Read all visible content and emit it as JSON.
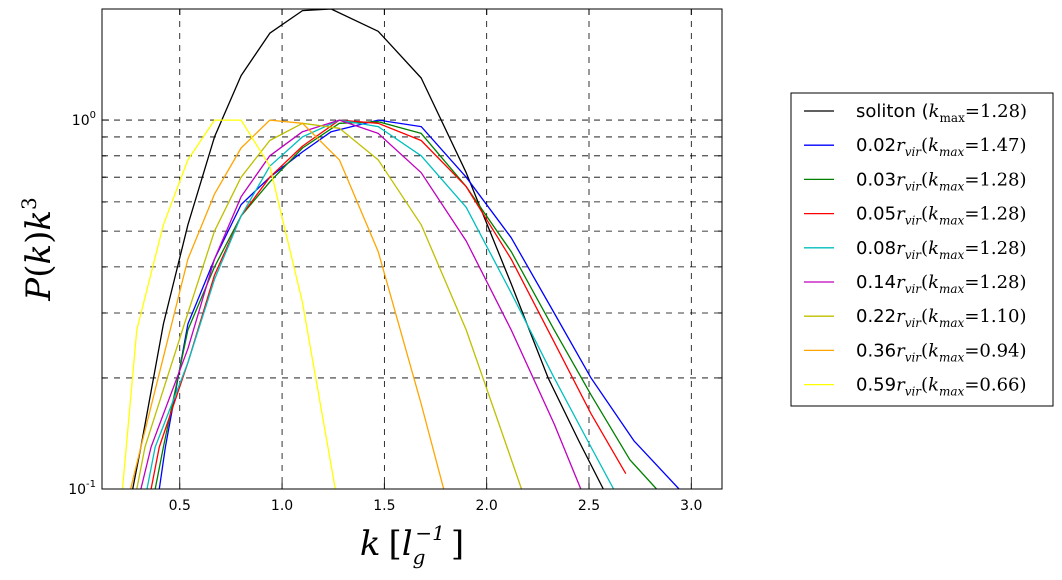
{
  "chart_data": {
    "type": "line",
    "xlabel": "k [l_g^-1]",
    "ylabel": "P(k)k^3",
    "xlim": [
      0.12,
      3.15
    ],
    "ylim": [
      0.1,
      2.0
    ],
    "yscale": "log",
    "grid": true,
    "grid_style": "dashed",
    "legend_position": "right-outside",
    "x_ticks": [
      0.5,
      1.0,
      1.5,
      2.0,
      2.5,
      3.0
    ],
    "x_tick_labels": [
      "0.5",
      "1.0",
      "1.5",
      "2.0",
      "2.5",
      "3.0"
    ],
    "y_tick_labels": [
      {
        "value": 1.0,
        "base": "10",
        "exp": "0"
      },
      {
        "value": 0.1,
        "base": "10",
        "exp": "-1"
      }
    ],
    "series": [
      {
        "name": "soliton (k_max=1.28)",
        "label_prefix": "soliton (",
        "label_sub": "max",
        "label_value": "=1.28)",
        "color": "#000000",
        "x": [
          0.27,
          0.31,
          0.42,
          0.54,
          0.67,
          0.8,
          0.94,
          1.1,
          1.24,
          1.47,
          1.68,
          1.9,
          2.12,
          2.3,
          2.45,
          2.57
        ],
        "y": [
          0.1,
          0.13,
          0.28,
          0.52,
          0.9,
          1.32,
          1.72,
          1.98,
          2.0,
          1.74,
          1.3,
          0.72,
          0.36,
          0.2,
          0.135,
          0.1
        ]
      },
      {
        "name": "0.02r_vir(k_max=1.47)",
        "label_prefix": "0.02",
        "label_value": "1.47",
        "color": "#0000ff",
        "x": [
          0.4,
          0.43,
          0.54,
          0.67,
          0.8,
          0.94,
          1.1,
          1.24,
          1.47,
          1.68,
          1.9,
          2.12,
          2.33,
          2.51,
          2.72,
          2.94
        ],
        "y": [
          0.1,
          0.13,
          0.28,
          0.42,
          0.59,
          0.7,
          0.82,
          0.93,
          1.0,
          0.96,
          0.7,
          0.48,
          0.3,
          0.2,
          0.135,
          0.1
        ]
      },
      {
        "name": "0.03r_vir(k_max=1.28)",
        "label_prefix": "0.03",
        "label_value": "1.28",
        "color": "#008000",
        "x": [
          0.38,
          0.42,
          0.54,
          0.67,
          0.8,
          0.94,
          1.1,
          1.28,
          1.47,
          1.68,
          1.9,
          2.12,
          2.33,
          2.51,
          2.7,
          2.83
        ],
        "y": [
          0.1,
          0.13,
          0.27,
          0.4,
          0.55,
          0.68,
          0.84,
          0.98,
          0.99,
          0.92,
          0.66,
          0.44,
          0.27,
          0.18,
          0.12,
          0.1
        ]
      },
      {
        "name": "0.05r_vir(k_max=1.28)",
        "label_prefix": "0.05",
        "label_value": "1.28",
        "color": "#ff0000",
        "x": [
          0.36,
          0.4,
          0.54,
          0.67,
          0.8,
          0.94,
          1.1,
          1.28,
          1.47,
          1.68,
          1.9,
          2.12,
          2.33,
          2.51,
          2.68
        ],
        "y": [
          0.1,
          0.13,
          0.22,
          0.38,
          0.55,
          0.7,
          0.85,
          1.0,
          0.98,
          0.88,
          0.66,
          0.42,
          0.25,
          0.16,
          0.11
        ]
      },
      {
        "name": "0.08r_vir(k_max=1.28)",
        "label_prefix": "0.08",
        "label_value": "1.28",
        "color": "#00bfbf",
        "x": [
          0.34,
          0.38,
          0.54,
          0.67,
          0.8,
          0.94,
          1.1,
          1.28,
          1.47,
          1.68,
          1.9,
          2.12,
          2.33,
          2.51,
          2.62
        ],
        "y": [
          0.1,
          0.13,
          0.22,
          0.37,
          0.55,
          0.75,
          0.9,
          1.0,
          0.96,
          0.8,
          0.58,
          0.34,
          0.2,
          0.13,
          0.1
        ]
      },
      {
        "name": "0.14r_vir(k_max=1.28)",
        "label_prefix": "0.14",
        "label_value": "1.28",
        "color": "#bf00bf",
        "x": [
          0.31,
          0.36,
          0.54,
          0.67,
          0.8,
          0.94,
          1.1,
          1.28,
          1.47,
          1.68,
          1.9,
          2.12,
          2.33,
          2.46
        ],
        "y": [
          0.1,
          0.13,
          0.24,
          0.42,
          0.62,
          0.8,
          0.93,
          1.0,
          0.92,
          0.72,
          0.47,
          0.27,
          0.15,
          0.1
        ]
      },
      {
        "name": "0.22r_vir(k_max=1.10)",
        "label_prefix": "0.22",
        "label_value": "1.10",
        "color": "#bfbf00",
        "x": [
          0.29,
          0.33,
          0.54,
          0.67,
          0.8,
          0.94,
          1.1,
          1.28,
          1.47,
          1.68,
          1.9,
          2.06,
          2.17
        ],
        "y": [
          0.1,
          0.13,
          0.3,
          0.5,
          0.7,
          0.88,
          0.98,
          0.95,
          0.78,
          0.52,
          0.27,
          0.15,
          0.1
        ]
      },
      {
        "name": "0.36r_vir(k_max=0.94)",
        "label_prefix": "0.36",
        "label_value": "0.94",
        "color": "#ffa500",
        "x": [
          0.26,
          0.31,
          0.54,
          0.67,
          0.8,
          0.94,
          1.1,
          1.28,
          1.47,
          1.68,
          1.79
        ],
        "y": [
          0.1,
          0.13,
          0.42,
          0.63,
          0.84,
          1.0,
          0.98,
          0.78,
          0.44,
          0.17,
          0.1
        ]
      },
      {
        "name": "0.59r_vir(k_max=0.66)",
        "label_prefix": "0.59",
        "label_value": "0.66",
        "color": "#ffff00",
        "x": [
          0.22,
          0.29,
          0.42,
          0.54,
          0.67,
          0.8,
          0.94,
          1.1,
          1.26
        ],
        "y": [
          0.1,
          0.27,
          0.52,
          0.78,
          1.0,
          1.0,
          0.75,
          0.32,
          0.1
        ]
      }
    ]
  }
}
